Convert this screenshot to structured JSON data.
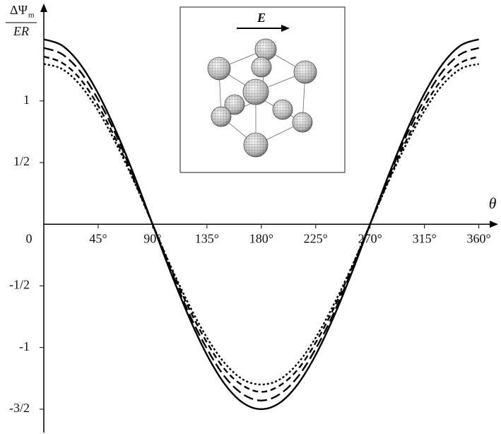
{
  "chart_data": {
    "type": "line",
    "y_label": {
      "numerator": "ΔΨ",
      "subscript": "m",
      "denominator": "ER"
    },
    "x_label": "θ",
    "annotations": {
      "field": "E"
    },
    "x": [
      0,
      15,
      30,
      45,
      60,
      75,
      90,
      105,
      120,
      135,
      150,
      165,
      180,
      195,
      210,
      225,
      240,
      255,
      270,
      285,
      300,
      315,
      330,
      345,
      360
    ],
    "series": [
      {
        "color": "#000000",
        "dash": "solid",
        "values": [
          1.5,
          1.45,
          1.3,
          1.06,
          0.75,
          0.39,
          0,
          -0.39,
          -0.75,
          -1.06,
          -1.3,
          -1.45,
          -1.5,
          -1.45,
          -1.3,
          -1.06,
          -0.75,
          -0.39,
          0,
          0.39,
          0.75,
          1.06,
          1.3,
          1.45,
          1.5
        ]
      },
      {
        "color": "#000000",
        "dash": "long",
        "values": [
          1.43,
          1.38,
          1.24,
          1.01,
          0.72,
          0.37,
          0,
          -0.37,
          -0.72,
          -1.01,
          -1.24,
          -1.38,
          -1.43,
          -1.38,
          -1.24,
          -1.01,
          -0.72,
          -0.37,
          0,
          0.37,
          0.72,
          1.01,
          1.24,
          1.38,
          1.43
        ]
      },
      {
        "color": "#000000",
        "dash": "medium",
        "values": [
          1.36,
          1.31,
          1.18,
          0.96,
          0.68,
          0.35,
          0,
          -0.35,
          -0.68,
          -0.96,
          -1.18,
          -1.31,
          -1.36,
          -1.31,
          -1.18,
          -0.96,
          -0.68,
          -0.35,
          0,
          0.35,
          0.68,
          0.96,
          1.18,
          1.31,
          1.36
        ]
      },
      {
        "color": "#000000",
        "dash": "dotted",
        "values": [
          1.3,
          1.26,
          1.13,
          0.92,
          0.65,
          0.34,
          0,
          -0.34,
          -0.65,
          -0.92,
          -1.13,
          -1.26,
          -1.3,
          -1.26,
          -1.13,
          -0.92,
          -0.65,
          -0.34,
          0,
          0.34,
          0.65,
          0.92,
          1.13,
          1.26,
          1.3
        ]
      }
    ],
    "xlim": [
      0,
      376
    ],
    "ylim": [
      -1.69,
      1.79
    ],
    "xticks": [
      0,
      {
        "value": 45,
        "label": "45°"
      },
      {
        "value": 90,
        "label": "90°"
      },
      {
        "value": 135,
        "label": "135°"
      },
      {
        "value": 180,
        "label": "180°"
      },
      {
        "value": 225,
        "label": "225°"
      },
      {
        "value": 270,
        "label": "270°"
      },
      {
        "value": 315,
        "label": "315°"
      },
      {
        "value": 360,
        "label": "360°"
      }
    ],
    "yticks": [
      {
        "value": -1.5,
        "label": "-3/2"
      },
      -1,
      {
        "value": -0.5,
        "label": "-1/2"
      },
      {
        "value": 0.5,
        "label": "1/2"
      },
      1
    ],
    "grid": false
  }
}
